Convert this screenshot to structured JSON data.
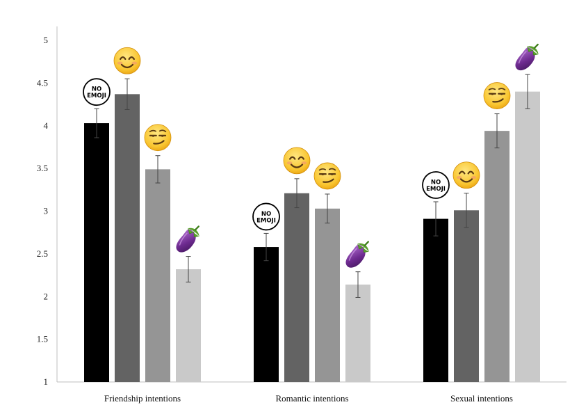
{
  "chart_data": {
    "type": "bar",
    "title": "",
    "xlabel": "",
    "ylabel": "",
    "ylim": [
      1,
      5
    ],
    "yticks": [
      "1",
      "1.5",
      "2",
      "2.5",
      "3",
      "3.5",
      "4",
      "4.5",
      "5"
    ],
    "categories": [
      "Friendship intentions",
      "Romantic intentions",
      "Sexual intentions"
    ],
    "series": [
      {
        "marker": "no-emoji",
        "marker_text": [
          "NO",
          "EMOJI"
        ],
        "color": "#000000",
        "values": [
          4.03,
          2.58,
          2.91
        ],
        "error": [
          0.17,
          0.16,
          0.2
        ]
      },
      {
        "marker": "smiling-face-emoji",
        "color": "#636363",
        "values": [
          4.37,
          3.21,
          3.01
        ],
        "error": [
          0.18,
          0.17,
          0.2
        ]
      },
      {
        "marker": "smirking-face-emoji",
        "color": "#959595",
        "values": [
          3.49,
          3.03,
          3.94
        ],
        "error": [
          0.16,
          0.17,
          0.2
        ]
      },
      {
        "marker": "eggplant-emoji",
        "color": "#c9c9c9",
        "values": [
          2.32,
          2.14,
          4.4
        ],
        "error": [
          0.15,
          0.15,
          0.2
        ]
      }
    ],
    "grid": false,
    "legend": "none"
  }
}
